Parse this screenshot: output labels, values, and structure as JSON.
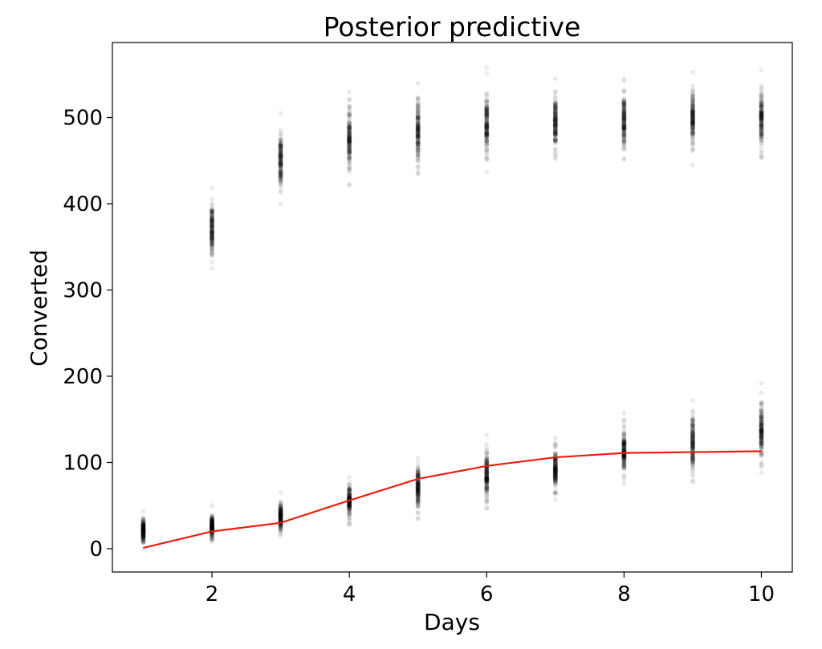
{
  "chart_data": {
    "type": "scatter",
    "title": "Posterior predictive",
    "xlabel": "Days",
    "ylabel": "Converted",
    "xlim": [
      0.55,
      10.45
    ],
    "ylim": [
      -27,
      587
    ],
    "xticks": [
      2,
      4,
      6,
      8,
      10
    ],
    "yticks": [
      0,
      100,
      200,
      300,
      400,
      500
    ],
    "grid": false,
    "colors": {
      "samples": "#000000",
      "observed": "#ee1c0e"
    },
    "sample_groups": [
      {
        "days": [
          2,
          3,
          4,
          5,
          6,
          7,
          8,
          9,
          10
        ],
        "center": [
          370,
          450,
          475,
          485,
          490,
          495,
          497,
          498,
          500
        ],
        "min": [
          325,
          400,
          422,
          435,
          437,
          452,
          452,
          445,
          453
        ],
        "max": [
          418,
          505,
          530,
          540,
          558,
          545,
          545,
          553,
          555
        ]
      },
      {
        "days": [
          1,
          2,
          3,
          4,
          5,
          6,
          7,
          8,
          9,
          10
        ],
        "center": [
          20,
          25,
          37,
          55,
          72,
          85,
          92,
          112,
          122,
          135
        ],
        "min": [
          0,
          8,
          15,
          28,
          35,
          47,
          57,
          75,
          78,
          88
        ],
        "max": [
          43,
          50,
          65,
          83,
          105,
          132,
          128,
          157,
          172,
          192
        ]
      }
    ],
    "observed_line": {
      "x": [
        1,
        2,
        3,
        4,
        5,
        6,
        7,
        8,
        9,
        10
      ],
      "y": [
        1,
        20,
        30,
        56,
        81,
        96,
        106,
        111,
        112,
        113
      ]
    }
  }
}
